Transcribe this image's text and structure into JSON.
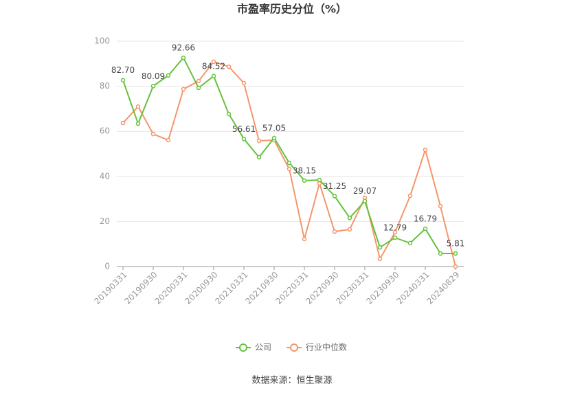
{
  "chart_data": {
    "type": "line",
    "title": "市盈率历史分位（%）",
    "source": "数据来源：恒生聚源",
    "categories": [
      "20190331",
      null,
      "20190930",
      null,
      "20200331",
      null,
      "20200930",
      null,
      "20210331",
      null,
      "20210930",
      null,
      "20220331",
      null,
      "20220930",
      null,
      "20230331",
      null,
      "20230930",
      null,
      "20240331",
      null,
      "20240829"
    ],
    "series": [
      {
        "name": "公司",
        "color": "#64c23a",
        "values": [
          82.7,
          63.4,
          80.09,
          84.8,
          92.66,
          79.3,
          84.52,
          67.7,
          56.61,
          48.5,
          57.05,
          46.0,
          38.15,
          38.4,
          31.25,
          21.6,
          29.07,
          8.5,
          12.79,
          10.4,
          16.79,
          5.8,
          5.81
        ],
        "value_labels": [
          "82.70",
          null,
          "80.09",
          null,
          "92.66",
          null,
          "84.52",
          null,
          "56.61",
          null,
          "57.05",
          null,
          "38.15",
          null,
          "31.25",
          null,
          "29.07",
          null,
          "12.79",
          null,
          "16.79",
          null,
          "5.81"
        ]
      },
      {
        "name": "行业中位数",
        "color": "#f5956a",
        "values": [
          63.7,
          71.0,
          58.8,
          56.1,
          78.7,
          82.3,
          90.9,
          88.7,
          81.4,
          55.8,
          56.1,
          43.3,
          12.2,
          36.9,
          15.5,
          16.5,
          30.5,
          3.4,
          15.2,
          31.4,
          51.8,
          26.8,
          0.0
        ]
      }
    ],
    "ylim": [
      0,
      100
    ],
    "yticks": [
      0,
      20,
      40,
      60,
      80,
      100
    ],
    "grid": true,
    "legend": "bottom"
  }
}
